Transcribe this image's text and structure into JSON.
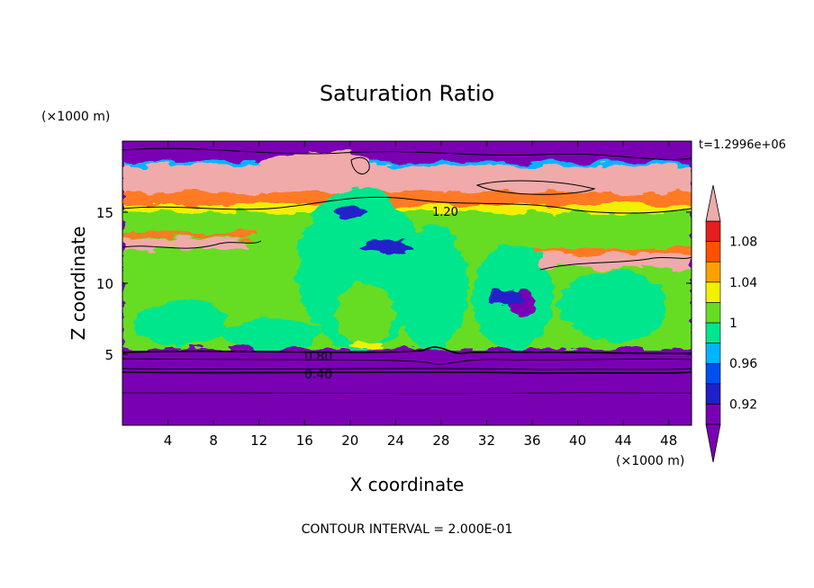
{
  "chart_data": {
    "type": "heatmap",
    "title": "Saturation Ratio",
    "xlabel": "X coordinate",
    "ylabel": "Z coordinate",
    "x_unit": "(×1000 m)",
    "y_unit": "(×1000 m)",
    "time_label": "t=1.2996e+06",
    "footer": "CONTOUR INTERVAL = 2.000E-01",
    "xlim": [
      0,
      50
    ],
    "ylim": [
      0,
      20
    ],
    "x_ticks": [
      "4",
      "8",
      "12",
      "16",
      "20",
      "24",
      "28",
      "32",
      "36",
      "40",
      "44",
      "48"
    ],
    "y_ticks": [
      "5",
      "10",
      "15"
    ],
    "contour_labels": [
      {
        "text": "0.80",
        "x": 17.4,
        "y": 4.9
      },
      {
        "text": "0.40",
        "x": 17.4,
        "y": 3.6
      },
      {
        "text": "1.20",
        "x": 27.2,
        "y": 15.0
      }
    ],
    "colorbar": {
      "levels": [
        0.9,
        0.92,
        0.94,
        0.96,
        0.98,
        1.0,
        1.02,
        1.04,
        1.06,
        1.08,
        1.1
      ],
      "labels": [
        "0.92",
        "0.96",
        "1",
        "1.04",
        "1.08"
      ],
      "colors": [
        "#7a00b4",
        "#2020c8",
        "#0050f0",
        "#00b4ff",
        "#00e68c",
        "#66dd22",
        "#f0f000",
        "#ffa000",
        "#ff5000",
        "#e61e1e",
        "#f0aaaa"
      ],
      "under_color": "#7a00b4",
      "over_color": "#f0aaaa"
    }
  }
}
